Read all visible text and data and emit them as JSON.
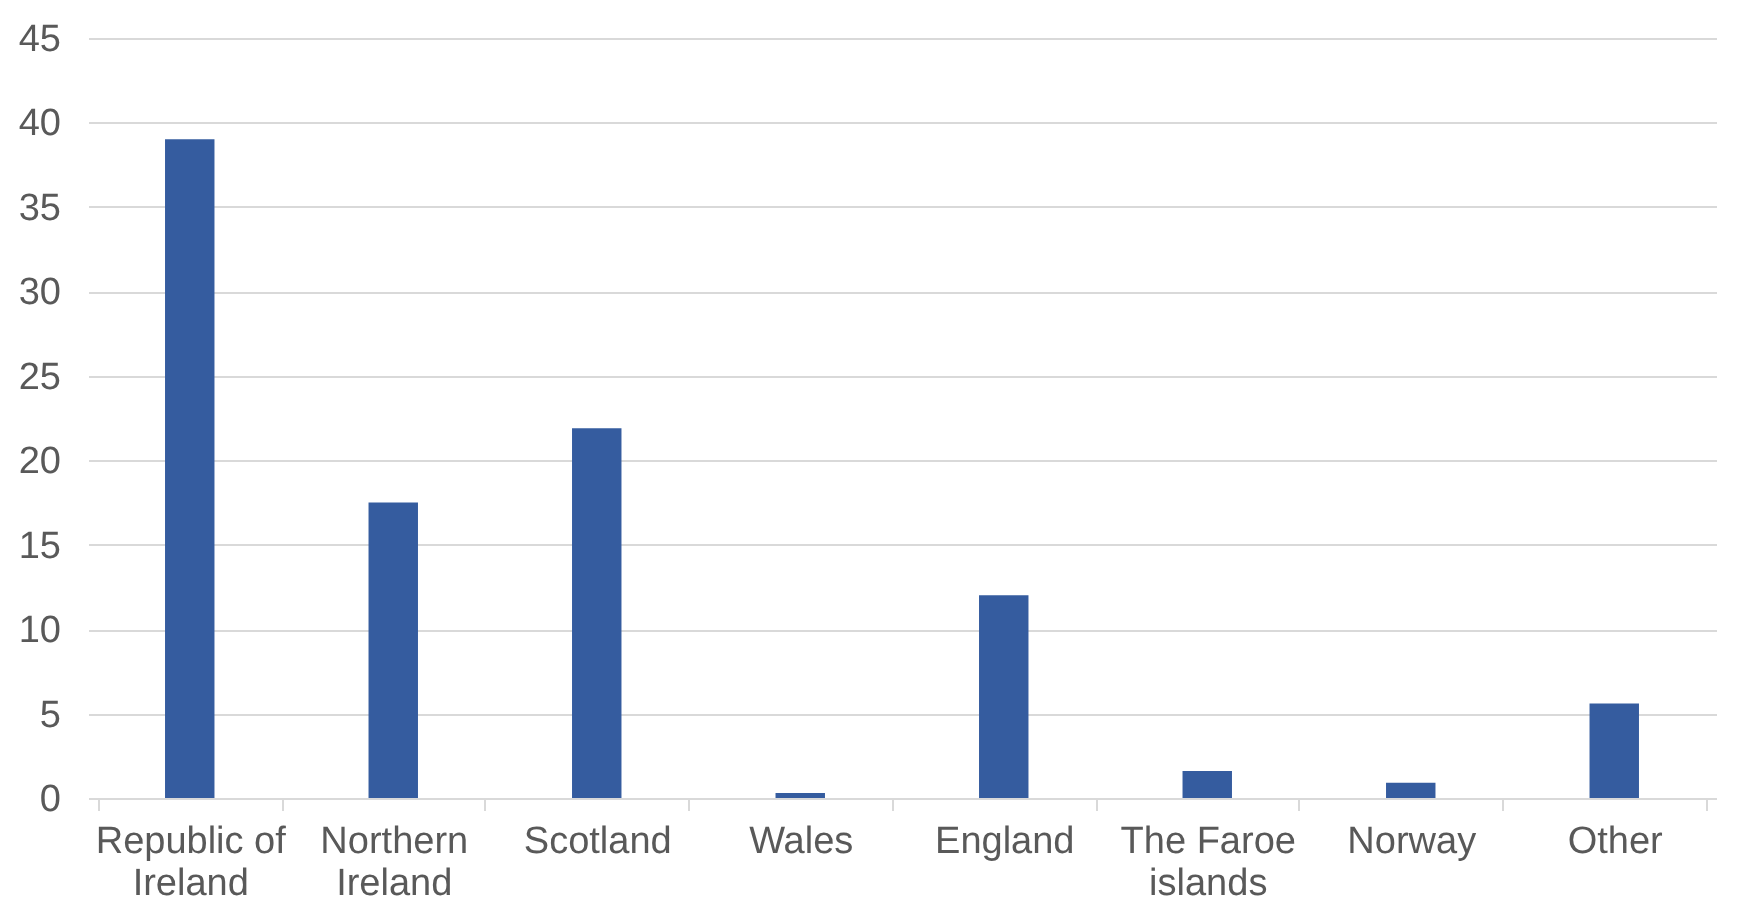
{
  "chart_data": {
    "type": "bar",
    "categories": [
      "Republic of Ireland",
      "Northern Ireland",
      "Scotland",
      "Wales",
      "England",
      "The Faroe islands",
      "Norway",
      "Other"
    ],
    "values": [
      39,
      17.5,
      21.9,
      0.3,
      12,
      1.6,
      0.9,
      5.6
    ],
    "color": "#355c9f",
    "ylim": [
      0,
      45
    ],
    "yticks": [
      0,
      5,
      10,
      15,
      20,
      25,
      30,
      35,
      40,
      45
    ],
    "grid": "y"
  }
}
